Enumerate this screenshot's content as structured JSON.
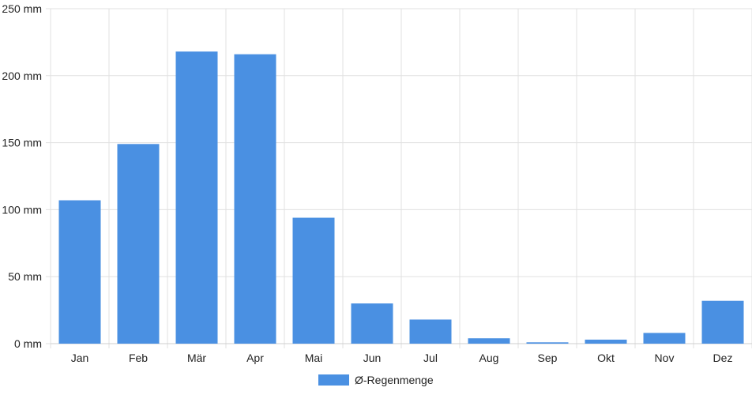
{
  "chart_data": {
    "type": "bar",
    "categories": [
      "Jan",
      "Feb",
      "Mär",
      "Apr",
      "Mai",
      "Jun",
      "Jul",
      "Aug",
      "Sep",
      "Okt",
      "Nov",
      "Dez"
    ],
    "series": [
      {
        "name": "Ø-Regenmenge",
        "values": [
          107,
          149,
          218,
          216,
          94,
          30,
          18,
          4,
          1,
          3,
          8,
          32
        ]
      }
    ],
    "y_ticks": [
      0,
      50,
      100,
      150,
      200,
      250
    ],
    "y_tick_labels": [
      "0 mm",
      "50 mm",
      "100 mm",
      "150 mm",
      "200 mm",
      "250 mm"
    ],
    "ylim": [
      0,
      250
    ],
    "grid": true,
    "legend_position": "bottom",
    "colors": {
      "bar": "#4a90e2",
      "grid": "#e0e0e0",
      "axis": "#cfcfcf"
    }
  }
}
